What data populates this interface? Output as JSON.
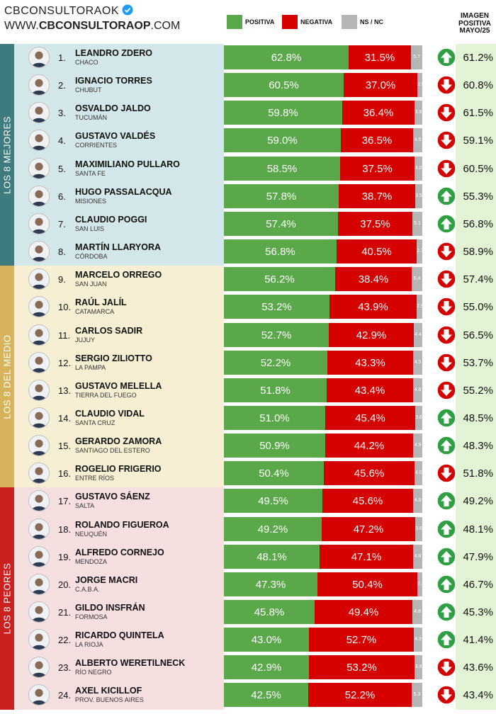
{
  "header": {
    "brand_handle": "CBCONSULTORAOK",
    "brand_site_prefix": "WWW.",
    "brand_site_bold": "CBCONSULTORAOP",
    "brand_site_suffix": ".COM",
    "legend": [
      {
        "label": "POSITIVA",
        "color": "#5aa84a"
      },
      {
        "label": "NEGATIVA",
        "color": "#d50000"
      },
      {
        "label": "NS / NC",
        "color": "#b5b5b5"
      }
    ],
    "column_title_lines": [
      "IMAGEN",
      "POSITIVA",
      "MAYO/25"
    ]
  },
  "colors": {
    "positiva": "#5aa84a",
    "negativa": "#d50000",
    "ns_nc": "#b5b5b5",
    "arrow_up": "#2ea043",
    "arrow_down": "#d50000",
    "mejores_band": "#3e7b7f",
    "mejores_bg": "#d3e6ea",
    "medio_band": "#d7b45c",
    "medio_bg": "#f6efd3",
    "peores_band": "#cc1f1f",
    "peores_bg": "#f6dfdf",
    "imagen_bg": "#e3f3d6"
  },
  "chart_data": {
    "type": "bar",
    "orientation": "horizontal",
    "stacked": true,
    "xlim": [
      0,
      100
    ],
    "series_names": [
      "POSITIVA",
      "NEGATIVA",
      "NS / NC"
    ],
    "groups": [
      {
        "label": "LOS 8 MEJORES",
        "from": 0,
        "to": 7
      },
      {
        "label": "LOS 8 DEL MEDIO",
        "from": 8,
        "to": 15
      },
      {
        "label": "LOS 8 PEORES",
        "from": 16,
        "to": 23
      }
    ],
    "rows": [
      {
        "rank": "1.",
        "name": "LEANDRO ZDERO",
        "province": "CHACO",
        "positiva": 62.8,
        "negativa": 31.5,
        "ns_nc": 5.7,
        "pos_label": "62.8%",
        "neg_label": "31.5%",
        "ns_label": "5.7",
        "trend": "up",
        "imagen": "61.2%"
      },
      {
        "rank": "2.",
        "name": "IGNACIO TORRES",
        "province": "CHUBUT",
        "positiva": 60.5,
        "negativa": 37.0,
        "ns_nc": 2.5,
        "pos_label": "60.5%",
        "neg_label": "37.0%",
        "ns_label": "2.5",
        "trend": "down",
        "imagen": "60.8%"
      },
      {
        "rank": "3.",
        "name": "OSVALDO JALDO",
        "province": "TUCUMÁN",
        "positiva": 59.8,
        "negativa": 36.4,
        "ns_nc": 3.8,
        "pos_label": "59.8%",
        "neg_label": "36.4%",
        "ns_label": "3.8",
        "trend": "down",
        "imagen": "61.5%"
      },
      {
        "rank": "4.",
        "name": "GUSTAVO VALDÉS",
        "province": "CORRIENTES",
        "positiva": 59.0,
        "negativa": 36.5,
        "ns_nc": 4.5,
        "pos_label": "59.0%",
        "neg_label": "36.5%",
        "ns_label": "4.5",
        "trend": "down",
        "imagen": "59.1%"
      },
      {
        "rank": "5.",
        "name": "MAXIMILIANO PULLARO",
        "province": "SANTA FE",
        "positiva": 58.5,
        "negativa": 37.5,
        "ns_nc": 4.0,
        "pos_label": "58.5%",
        "neg_label": "37.5%",
        "ns_label": "4.0",
        "trend": "down",
        "imagen": "60.5%"
      },
      {
        "rank": "6.",
        "name": "HUGO PASSALACQUA",
        "province": "MISIONES",
        "positiva": 57.8,
        "negativa": 38.7,
        "ns_nc": 3.5,
        "pos_label": "57.8%",
        "neg_label": "38.7%",
        "ns_label": "3.5",
        "trend": "up",
        "imagen": "55.3%"
      },
      {
        "rank": "7.",
        "name": "CLAUDIO POGGI",
        "province": "SAN LUIS",
        "positiva": 57.4,
        "negativa": 37.5,
        "ns_nc": 5.1,
        "pos_label": "57.4%",
        "neg_label": "37.5%",
        "ns_label": "5.1",
        "trend": "up",
        "imagen": "56.8%"
      },
      {
        "rank": "8.",
        "name": "MARTÍN LLARYORA",
        "province": "CÓRDOBA",
        "positiva": 56.8,
        "negativa": 40.5,
        "ns_nc": 2.7,
        "pos_label": "56.8%",
        "neg_label": "40.5%",
        "ns_label": "2.7",
        "trend": "down",
        "imagen": "58.9%"
      },
      {
        "rank": "9.",
        "name": "MARCELO ORREGO",
        "province": "SAN JUAN",
        "positiva": 56.2,
        "negativa": 38.4,
        "ns_nc": 5.4,
        "pos_label": "56.2%",
        "neg_label": "38.4%",
        "ns_label": "5.4",
        "trend": "down",
        "imagen": "57.4%"
      },
      {
        "rank": "10.",
        "name": "RAÚL JALÍL",
        "province": "CATAMARCA",
        "positiva": 53.2,
        "negativa": 43.9,
        "ns_nc": 2.9,
        "pos_label": "53.2%",
        "neg_label": "43.9%",
        "ns_label": "2.9",
        "trend": "down",
        "imagen": "55.0%"
      },
      {
        "rank": "11.",
        "name": "CARLOS SADIR",
        "province": "JUJUY",
        "positiva": 52.7,
        "negativa": 42.9,
        "ns_nc": 4.4,
        "pos_label": "52.7%",
        "neg_label": "42.9%",
        "ns_label": "4.4",
        "trend": "down",
        "imagen": "56.5%"
      },
      {
        "rank": "12.",
        "name": "SERGIO ZILIOTTO",
        "province": "LA PAMPA",
        "positiva": 52.2,
        "negativa": 43.3,
        "ns_nc": 4.5,
        "pos_label": "52.2%",
        "neg_label": "43.3%",
        "ns_label": "4.5",
        "trend": "down",
        "imagen": "53.7%"
      },
      {
        "rank": "13.",
        "name": "GUSTAVO MELELLA",
        "province": "TIERRA DEL FUEGO",
        "positiva": 51.8,
        "negativa": 43.4,
        "ns_nc": 4.8,
        "pos_label": "51.8%",
        "neg_label": "43.4%",
        "ns_label": "4.8",
        "trend": "down",
        "imagen": "55.2%"
      },
      {
        "rank": "14.",
        "name": "CLAUDIO VIDAL",
        "province": "SANTA CRUZ",
        "positiva": 51.0,
        "negativa": 45.4,
        "ns_nc": 3.6,
        "pos_label": "51.0%",
        "neg_label": "45.4%",
        "ns_label": "3.6",
        "trend": "up",
        "imagen": "48.5%"
      },
      {
        "rank": "15.",
        "name": "GERARDO ZAMORA",
        "province": "SANTIAGO DEL ESTERO",
        "positiva": 50.9,
        "negativa": 44.2,
        "ns_nc": 4.9,
        "pos_label": "50.9%",
        "neg_label": "44.2%",
        "ns_label": "4.9",
        "trend": "up",
        "imagen": "48.3%"
      },
      {
        "rank": "16.",
        "name": "ROGELIO FRIGERIO",
        "province": "ENTRE RÍOS",
        "positiva": 50.4,
        "negativa": 45.6,
        "ns_nc": 4.0,
        "pos_label": "50.4%",
        "neg_label": "45.6%",
        "ns_label": "4.0",
        "trend": "down",
        "imagen": "51.8%"
      },
      {
        "rank": "17.",
        "name": "GUSTAVO SÁENZ",
        "province": "SALTA",
        "positiva": 49.5,
        "negativa": 45.6,
        "ns_nc": 4.9,
        "pos_label": "49.5%",
        "neg_label": "45.6%",
        "ns_label": "4.9",
        "trend": "up",
        "imagen": "49.2%"
      },
      {
        "rank": "18.",
        "name": "ROLANDO FIGUEROA",
        "province": "NEUQUÉN",
        "positiva": 49.2,
        "negativa": 47.2,
        "ns_nc": 3.6,
        "pos_label": "49.2%",
        "neg_label": "47.2%",
        "ns_label": "3.6",
        "trend": "up",
        "imagen": "48.1%"
      },
      {
        "rank": "19.",
        "name": "ALFREDO CORNEJO",
        "province": "MENDOZA",
        "positiva": 48.1,
        "negativa": 47.1,
        "ns_nc": 4.8,
        "pos_label": "48.1%",
        "neg_label": "47.1%",
        "ns_label": "4.8",
        "trend": "up",
        "imagen": "47.9%"
      },
      {
        "rank": "20.",
        "name": "JORGE MACRI",
        "province": "C.A.B.A.",
        "positiva": 47.3,
        "negativa": 50.4,
        "ns_nc": 2.3,
        "pos_label": "47.3%",
        "neg_label": "50.4%",
        "ns_label": "2.3",
        "trend": "up",
        "imagen": "46.7%"
      },
      {
        "rank": "21.",
        "name": "GILDO INSFRÁN",
        "province": "FORMOSA",
        "positiva": 45.8,
        "negativa": 49.4,
        "ns_nc": 4.8,
        "pos_label": "45.8%",
        "neg_label": "49.4%",
        "ns_label": "4.8",
        "trend": "up",
        "imagen": "45.3%"
      },
      {
        "rank": "22.",
        "name": "RICARDO QUINTELA",
        "province": "LA RIOJA",
        "positiva": 43.0,
        "negativa": 52.7,
        "ns_nc": 4.3,
        "pos_label": "43.0%",
        "neg_label": "52.7%",
        "ns_label": "4.3",
        "trend": "up",
        "imagen": "41.4%"
      },
      {
        "rank": "23.",
        "name": "ALBERTO WERETILNECK",
        "province": "RÍO NEGRO",
        "positiva": 42.9,
        "negativa": 53.2,
        "ns_nc": 3.9,
        "pos_label": "42.9%",
        "neg_label": "53.2%",
        "ns_label": "3.9",
        "trend": "down",
        "imagen": "43.6%"
      },
      {
        "rank": "24.",
        "name": "AXEL KICILLOF",
        "province": "PROV. BUENOS AIRES",
        "positiva": 42.5,
        "negativa": 52.2,
        "ns_nc": 5.3,
        "pos_label": "42.5%",
        "neg_label": "52.2%",
        "ns_label": "5.3",
        "trend": "down",
        "imagen": "43.4%"
      }
    ]
  }
}
